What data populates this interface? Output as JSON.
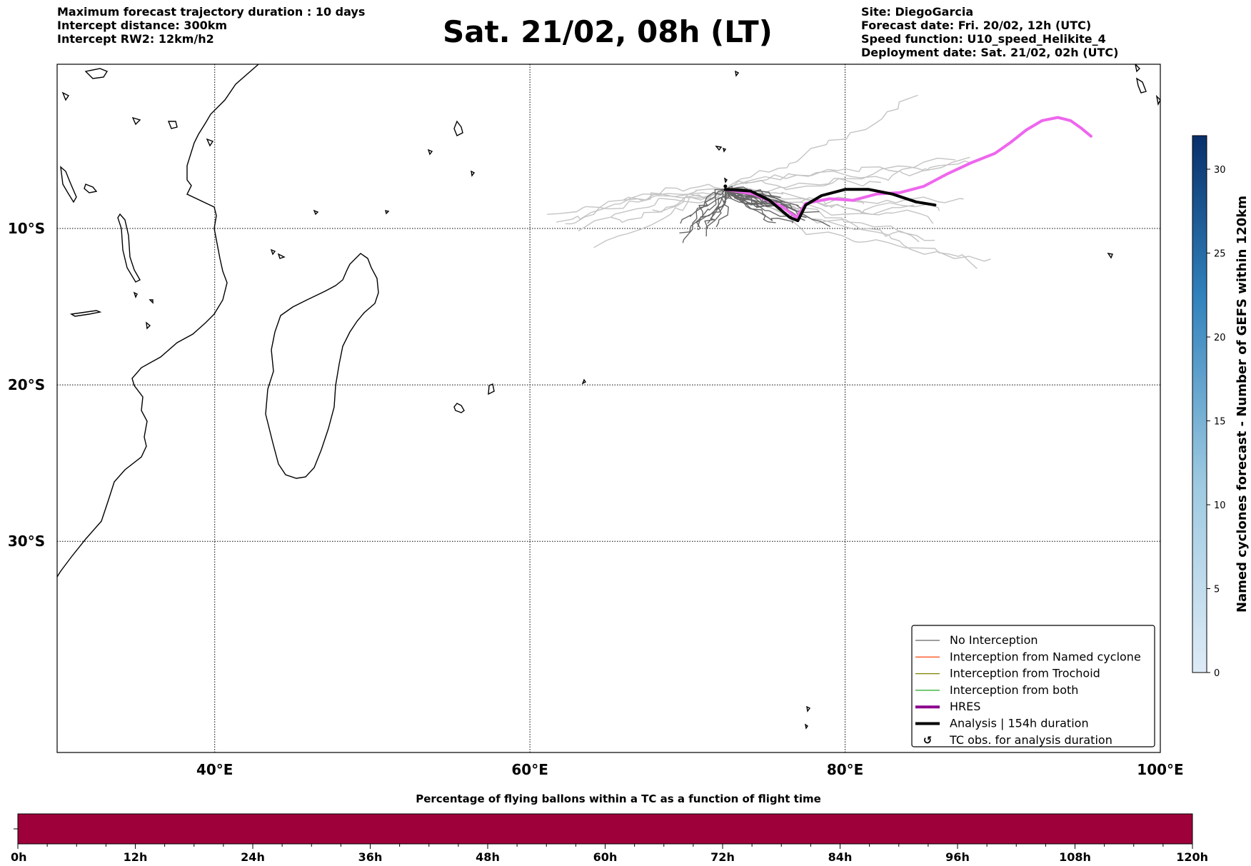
{
  "header": {
    "left": [
      "Maximum forecast trajectory duration : 10 days",
      "Intercept distance: 300km",
      "Intercept RW2: 12km/h2"
    ],
    "title": "Sat. 21/02, 08h (LT)",
    "right": [
      "Site: DiegoGarcia",
      "Forecast date: Fri. 20/02, 12h (UTC)",
      "Speed function: U10_speed_Helikite_4",
      "Deployment date: Sat. 21/02, 02h (UTC)"
    ]
  },
  "map": {
    "lon_range": [
      30,
      100
    ],
    "lat_range": [
      -43.5,
      0.5
    ],
    "lon_ticks": [
      {
        "value": 40,
        "label": "40°E"
      },
      {
        "value": 60,
        "label": "60°E"
      },
      {
        "value": 80,
        "label": "80°E"
      },
      {
        "value": 100,
        "label": "100°E"
      }
    ],
    "lat_ticks": [
      {
        "value": -10,
        "label": "10°S"
      },
      {
        "value": -20,
        "label": "20°S"
      },
      {
        "value": -30,
        "label": "30°S"
      }
    ],
    "grid": "dotted",
    "colors": {
      "coast": "#000000",
      "ensemble_dark": "#666666",
      "ensemble_light": "#c4c4c4",
      "hres": "#ee66ee",
      "analysis": "#000000"
    },
    "site": [
      72.4,
      -7.3
    ],
    "analysis_track": [
      [
        72.4,
        -7.5
      ],
      [
        74.0,
        -7.6
      ],
      [
        75.2,
        -8.2
      ],
      [
        76.5,
        -9.3
      ],
      [
        77.0,
        -9.5
      ],
      [
        77.5,
        -8.5
      ],
      [
        78.5,
        -7.9
      ],
      [
        80.0,
        -7.5
      ],
      [
        81.5,
        -7.5
      ],
      [
        83.0,
        -7.8
      ],
      [
        84.5,
        -8.3
      ],
      [
        85.7,
        -8.5
      ]
    ],
    "hres_track": [
      [
        72.4,
        -7.5
      ],
      [
        74.2,
        -7.8
      ],
      [
        76.0,
        -8.6
      ],
      [
        76.9,
        -9.3
      ],
      [
        77.5,
        -8.4
      ],
      [
        79.0,
        -8.1
      ],
      [
        80.5,
        -8.2
      ],
      [
        82.0,
        -7.8
      ],
      [
        83.5,
        -7.7
      ],
      [
        85.0,
        -7.3
      ],
      [
        86.5,
        -6.5
      ],
      [
        88.0,
        -5.8
      ],
      [
        89.5,
        -5.2
      ],
      [
        90.5,
        -4.5
      ],
      [
        91.5,
        -3.7
      ],
      [
        92.5,
        -3.1
      ],
      [
        93.5,
        -2.9
      ],
      [
        94.3,
        -3.1
      ],
      [
        95.0,
        -3.6
      ],
      [
        95.6,
        -4.1
      ]
    ]
  },
  "legend": [
    {
      "label": "No Interception",
      "color": "#666666",
      "style": "line-thin"
    },
    {
      "label": "Interception from Named cyclone",
      "color": "#ff5522",
      "style": "line-thin"
    },
    {
      "label": "Interception from Trochoid",
      "color": "#808000",
      "style": "line-thin"
    },
    {
      "label": "Interception from both",
      "color": "#22aa22",
      "style": "line-thin"
    },
    {
      "label": "HRES",
      "color": "#8b008b",
      "style": "line-thick"
    },
    {
      "label": "Analysis | 154h duration",
      "color": "#000000",
      "style": "line-thick"
    },
    {
      "label": "TC obs. for analysis duration",
      "color": "#000000",
      "style": "marker"
    }
  ],
  "colorbar": {
    "label": "Named cyclones forecast - Number of GEFS within 120km",
    "range": [
      0,
      32
    ],
    "ticks": [
      0,
      5,
      10,
      15,
      20,
      25,
      30
    ],
    "colors": [
      "#deebf7",
      "#08306b"
    ]
  },
  "timebar": {
    "title": "Percentage of flying ballons within a TC as a function of flight time",
    "ticks": [
      "0h",
      "12h",
      "24h",
      "36h",
      "48h",
      "60h",
      "72h",
      "84h",
      "96h",
      "108h",
      "120h"
    ],
    "fill_color": "#9e003a"
  }
}
